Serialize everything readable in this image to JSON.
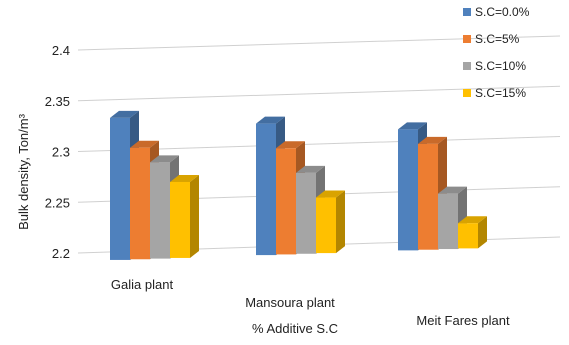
{
  "chart_data": {
    "type": "bar",
    "title": "",
    "xlabel": "% Additive S.C",
    "ylabel": "Bulk density, Ton/m³",
    "categories": [
      "Galia plant",
      "Mansoura plant",
      "Meit Fares  plant"
    ],
    "series": [
      {
        "name": "S.C=0.0%",
        "color": "#4f81bd",
        "values": [
          2.34,
          2.33,
          2.32
        ]
      },
      {
        "name": "S.C=5%",
        "color": "#ed7d31",
        "values": [
          2.31,
          2.305,
          2.305
        ]
      },
      {
        "name": "S.C=10%",
        "color": "#a5a5a5",
        "values": [
          2.295,
          2.28,
          2.255
        ]
      },
      {
        "name": "S.C=15%",
        "color": "#ffc000",
        "values": [
          2.275,
          2.255,
          2.225
        ]
      }
    ],
    "y_ticks": [
      "2.2",
      "2.25",
      "2.3",
      "2.35",
      "2.4"
    ],
    "ylim": [
      2.2,
      2.4
    ],
    "grid": true,
    "legend_position": "top-right"
  }
}
